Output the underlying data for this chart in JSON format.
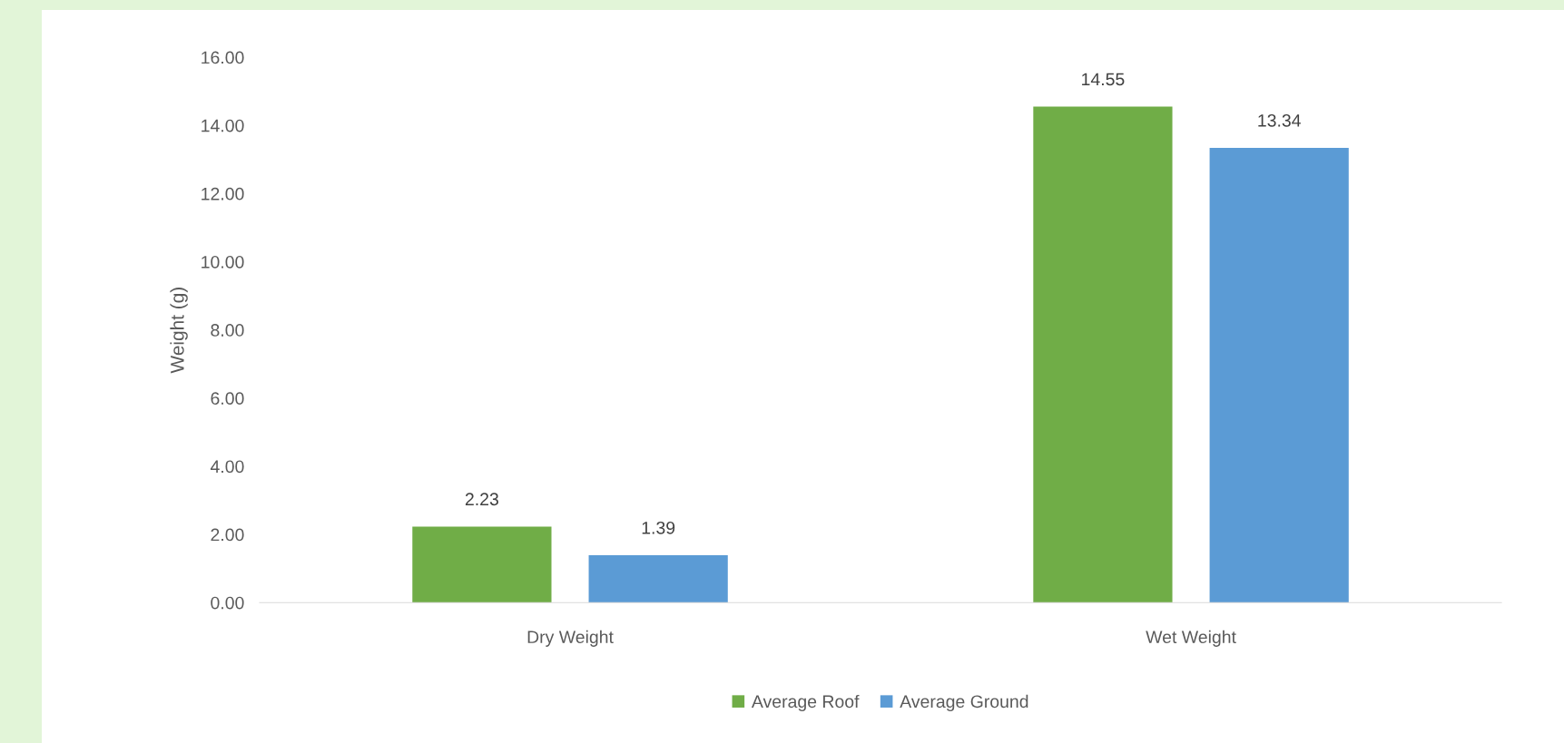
{
  "chart_data": {
    "type": "bar",
    "ylabel": "Weight (g)",
    "categories": [
      "Dry Weight",
      "Wet Weight"
    ],
    "series": [
      {
        "name": "Average Roof",
        "color": "#70ad47",
        "values": [
          2.23,
          14.55
        ]
      },
      {
        "name": "Average Ground",
        "color": "#5b9bd5",
        "values": [
          1.39,
          13.34
        ]
      }
    ],
    "ylim": [
      0,
      16
    ],
    "yticks": [
      {
        "value": 0,
        "label": "0.00"
      },
      {
        "value": 2,
        "label": "2.00"
      },
      {
        "value": 4,
        "label": "4.00"
      },
      {
        "value": 6,
        "label": "6.00"
      },
      {
        "value": 8,
        "label": "8.00"
      },
      {
        "value": 10,
        "label": "10.00"
      },
      {
        "value": 12,
        "label": "12.00"
      },
      {
        "value": 14,
        "label": "14.00"
      },
      {
        "value": 16,
        "label": "16.00"
      }
    ],
    "data_labels": true,
    "grid": false,
    "legend": "bottom"
  }
}
